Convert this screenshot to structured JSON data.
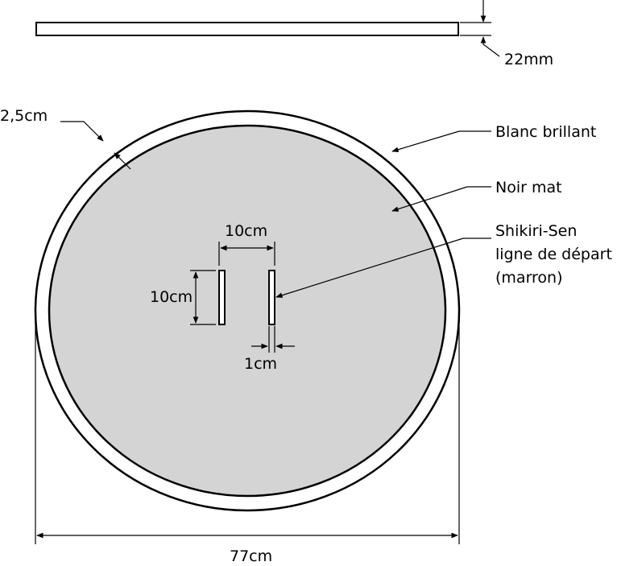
{
  "dimensions": {
    "thickness": "22mm",
    "border_width": "2,5cm",
    "line_spacing": "10cm",
    "line_length": "10cm",
    "line_width": "1cm",
    "diameter": "77cm"
  },
  "legend": {
    "border": "Blanc brillant",
    "surface": "Noir mat",
    "start_line_1": "Shikiri-Sen",
    "start_line_2": "ligne de départ",
    "start_line_3": "(marron)"
  },
  "colors": {
    "surface_fill": "#d4d4d4",
    "border_fill": "#ffffff",
    "stroke": "#000000"
  }
}
